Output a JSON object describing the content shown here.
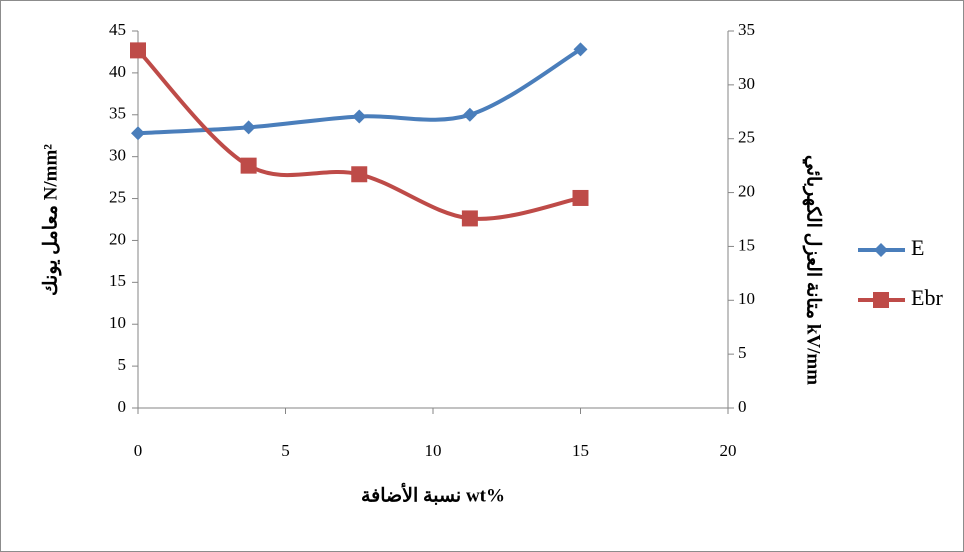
{
  "chart_data": {
    "type": "line",
    "x_label": "نسبة الأضافة wt%",
    "y_label": "معامل يونك N/mm²",
    "y2_label": "متانة العزل الكهربائي kV/mm",
    "x": [
      0,
      3.75,
      7.5,
      11.25,
      15
    ],
    "series": [
      {
        "name": "E",
        "color": "#4a7ebb",
        "marker": "diamond",
        "values": [
          32.8,
          33.5,
          34.8,
          35,
          42.8
        ]
      },
      {
        "name": "Ebr",
        "color": "#be4b48",
        "marker": "square",
        "axis": "y2",
        "values": [
          33.2,
          22.5,
          21.7,
          17.6,
          19.5
        ]
      }
    ],
    "xlim": [
      0,
      20
    ],
    "xticks": [
      0,
      5,
      10,
      15,
      20
    ],
    "ylim": [
      0,
      45
    ],
    "yticks": [
      0,
      5,
      10,
      15,
      20,
      25,
      30,
      35,
      40,
      45
    ],
    "y2lim": [
      0,
      35
    ],
    "y2ticks": [
      0,
      5,
      10,
      15,
      20,
      25,
      30,
      35
    ],
    "legend": "right",
    "smooth": true
  }
}
